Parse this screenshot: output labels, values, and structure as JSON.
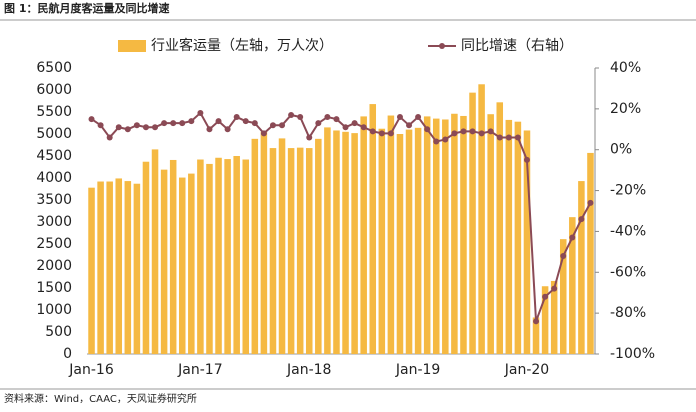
{
  "chart_data": {
    "type": "bar_line",
    "title": "图 1：民航月度客运量及同比增速",
    "source": "资料来源：Wind，CAAC，天风证券研究所",
    "categories": [
      "Jan-16",
      null,
      null,
      null,
      null,
      null,
      null,
      null,
      null,
      null,
      null,
      null,
      "Jan-17",
      null,
      null,
      null,
      null,
      null,
      null,
      null,
      null,
      null,
      null,
      null,
      "Jan-18",
      null,
      null,
      null,
      null,
      null,
      null,
      null,
      null,
      null,
      null,
      null,
      "Jan-19",
      null,
      null,
      null,
      null,
      null,
      null,
      null,
      null,
      null,
      null,
      null,
      "Jan-20",
      null,
      null,
      null,
      null,
      null,
      null,
      null
    ],
    "series": [
      {
        "name": "行业客运量（左轴，万人次）",
        "color": "#f5b942",
        "axis": "y",
        "values": [
          3780,
          3920,
          3920,
          3990,
          3930,
          3870,
          4370,
          4650,
          4190,
          4410,
          4010,
          4100,
          4420,
          4320,
          4460,
          4430,
          4500,
          4420,
          4890,
          5050,
          4680,
          4900,
          4680,
          4690,
          4680,
          4890,
          5150,
          5080,
          5050,
          5020,
          5400,
          5680,
          5120,
          5420,
          5000,
          5100,
          5140,
          5400,
          5350,
          5330,
          5460,
          5410,
          5940,
          6130,
          5450,
          5720,
          5320,
          5280,
          5080,
          830,
          1540,
          1660,
          2610,
          3110,
          3930,
          4570
        ]
      },
      {
        "name": "同比增速（右轴）",
        "color": "#8b4a55",
        "axis": "y2",
        "values": [
          15,
          12,
          6,
          11,
          10,
          12,
          11,
          11,
          13,
          13,
          13,
          14,
          18,
          10,
          14,
          10,
          16,
          14,
          13,
          8,
          12,
          12,
          17,
          16,
          6,
          13,
          16,
          15,
          11,
          13,
          11,
          9,
          8,
          8,
          16,
          12,
          16,
          10,
          4,
          5,
          8,
          9,
          9,
          8,
          9,
          6,
          6,
          6,
          -5,
          -84,
          -72,
          -68,
          -52,
          -43,
          -34,
          -26
        ]
      }
    ],
    "ylim": [
      0,
      6500
    ],
    "yticks": [
      0,
      500,
      1000,
      1500,
      2000,
      2500,
      3000,
      3500,
      4000,
      4500,
      5000,
      5500,
      6000,
      6500
    ],
    "y2lim": [
      -100,
      40
    ],
    "y2ticks": [
      {
        "value": -100,
        "label": "-100%"
      },
      {
        "value": -80,
        "label": "-80%"
      },
      {
        "value": -60,
        "label": "-60%"
      },
      {
        "value": -40,
        "label": "-40%"
      },
      {
        "value": -20,
        "label": "-20%"
      },
      {
        "value": 0,
        "label": "0%"
      },
      {
        "value": 20,
        "label": "20%"
      },
      {
        "value": 40,
        "label": "40%"
      }
    ]
  }
}
